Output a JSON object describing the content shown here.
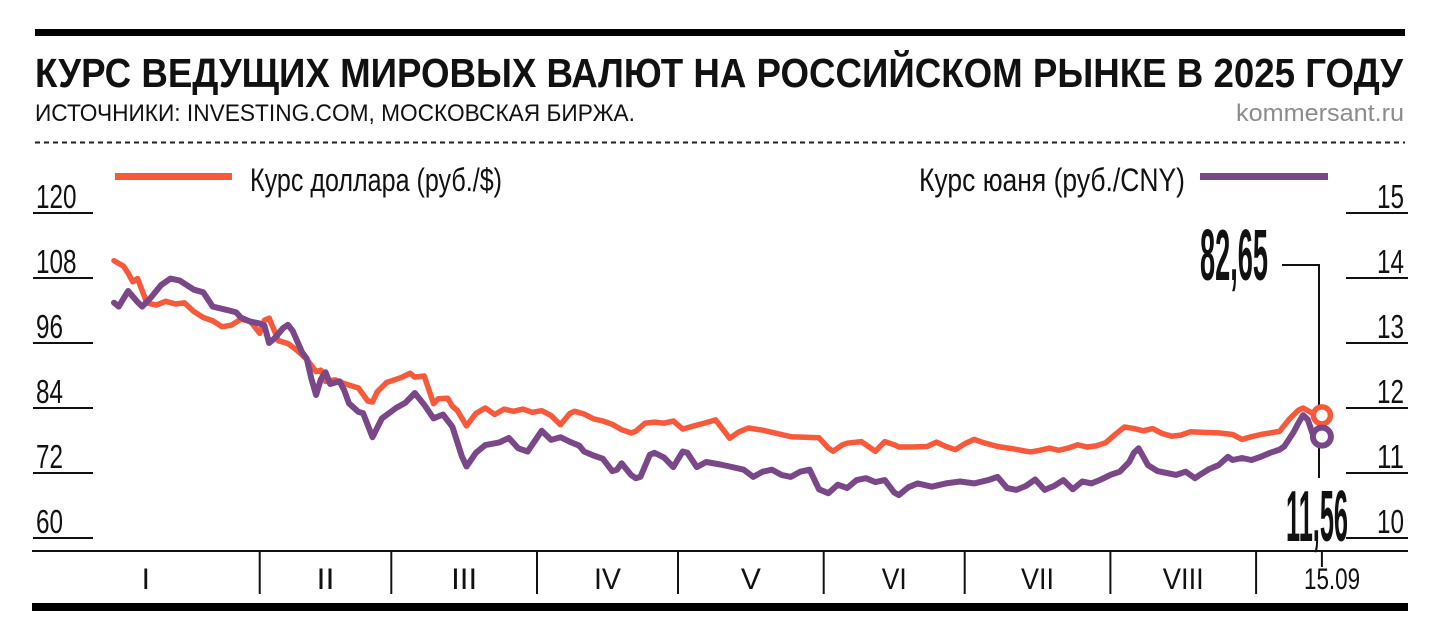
{
  "header": {
    "sources": "ИСТОЧНИКИ: INVESTING.COM, МОСКОВСКАЯ БИРЖА.",
    "site": "kommersant.ru"
  },
  "chart_data": {
    "type": "line",
    "title": "КУРС ВЕДУЩИХ МИРОВЫХ ВАЛЮТ НА РОССИЙСКОМ РЫНКЕ В 2025 ГОДУ",
    "x_axis": {
      "labels": [
        "I",
        "II",
        "III",
        "IV",
        "V",
        "VI",
        "VII",
        "VIII",
        "15.09"
      ],
      "month_boundary_days": [
        31,
        59,
        90,
        120,
        151,
        181,
        212,
        243
      ],
      "end_day": 257,
      "end_date_label": "15.09"
    },
    "left_axis": {
      "ticks": [
        120,
        108,
        96,
        84,
        72,
        60
      ],
      "range": [
        60,
        120
      ],
      "label": "руб./$"
    },
    "right_axis": {
      "ticks": [
        15,
        14,
        13,
        12,
        11,
        10
      ],
      "range": [
        10,
        15
      ],
      "label": "руб./CNY"
    },
    "grid": false,
    "legend_position": "top",
    "series": [
      {
        "name": "Курс доллара (руб./$)",
        "axis": "left",
        "color": "#F7593B",
        "end_value": 82.65,
        "end_label": "82,65",
        "points": [
          [
            0,
            111.2
          ],
          [
            2,
            110.2
          ],
          [
            3,
            108.9
          ],
          [
            4,
            107.3
          ],
          [
            5,
            107.9
          ],
          [
            7,
            103.4
          ],
          [
            9,
            103.0
          ],
          [
            11,
            103.7
          ],
          [
            13,
            103.2
          ],
          [
            15,
            103.4
          ],
          [
            17,
            101.8
          ],
          [
            19,
            100.7
          ],
          [
            21,
            100.1
          ],
          [
            23,
            99.0
          ],
          [
            25,
            99.3
          ],
          [
            27,
            100.4
          ],
          [
            29,
            100.0
          ],
          [
            31,
            97.8
          ],
          [
            32,
            100.2
          ],
          [
            33,
            100.6
          ],
          [
            35,
            96.4
          ],
          [
            37,
            95.9
          ],
          [
            39,
            94.6
          ],
          [
            41,
            93.0
          ],
          [
            43,
            90.7
          ],
          [
            44,
            91.0
          ],
          [
            45,
            88.9
          ],
          [
            47,
            89.2
          ],
          [
            49,
            88.5
          ],
          [
            52,
            87.7
          ],
          [
            54,
            85.3
          ],
          [
            55,
            85.1
          ],
          [
            56,
            87.0
          ],
          [
            58,
            88.7
          ],
          [
            61,
            89.6
          ],
          [
            63,
            90.4
          ],
          [
            64,
            89.7
          ],
          [
            66,
            89.9
          ],
          [
            68,
            84.8
          ],
          [
            69,
            85.7
          ],
          [
            71,
            85.8
          ],
          [
            72,
            84.3
          ],
          [
            73,
            83.6
          ],
          [
            75,
            80.7
          ],
          [
            77,
            83.0
          ],
          [
            79,
            84.0
          ],
          [
            81,
            82.8
          ],
          [
            83,
            83.8
          ],
          [
            85,
            83.4
          ],
          [
            87,
            83.8
          ],
          [
            89,
            83.2
          ],
          [
            91,
            83.5
          ],
          [
            93,
            82.6
          ],
          [
            95,
            80.9
          ],
          [
            97,
            83.0
          ],
          [
            98,
            83.4
          ],
          [
            100,
            82.9
          ],
          [
            102,
            82.0
          ],
          [
            104,
            81.6
          ],
          [
            106,
            81.0
          ],
          [
            108,
            80.0
          ],
          [
            110,
            79.4
          ],
          [
            111,
            79.7
          ],
          [
            113,
            81.2
          ],
          [
            115,
            81.4
          ],
          [
            117,
            81.2
          ],
          [
            119,
            81.6
          ],
          [
            121,
            80.1
          ],
          [
            123,
            80.6
          ],
          [
            126,
            81.3
          ],
          [
            128,
            81.8
          ],
          [
            131,
            78.4
          ],
          [
            133,
            79.6
          ],
          [
            135,
            80.3
          ],
          [
            138,
            79.9
          ],
          [
            142,
            79.1
          ],
          [
            144,
            78.7
          ],
          [
            147,
            78.6
          ],
          [
            150,
            78.5
          ],
          [
            152,
            76.6
          ],
          [
            153,
            76.0
          ],
          [
            155,
            77.2
          ],
          [
            156,
            77.5
          ],
          [
            159,
            77.8
          ],
          [
            162,
            76.0
          ],
          [
            164,
            77.8
          ],
          [
            166,
            77.2
          ],
          [
            167,
            76.8
          ],
          [
            170,
            76.8
          ],
          [
            173,
            76.9
          ],
          [
            175,
            77.7
          ],
          [
            177,
            76.9
          ],
          [
            179,
            76.3
          ],
          [
            181,
            77.4
          ],
          [
            183,
            78.2
          ],
          [
            185,
            77.6
          ],
          [
            188,
            76.9
          ],
          [
            191,
            76.5
          ],
          [
            193,
            76.2
          ],
          [
            195,
            75.9
          ],
          [
            197,
            76.2
          ],
          [
            199,
            76.6
          ],
          [
            201,
            76.2
          ],
          [
            203,
            76.6
          ],
          [
            205,
            77.2
          ],
          [
            207,
            76.8
          ],
          [
            209,
            77.0
          ],
          [
            211,
            77.6
          ],
          [
            213,
            79.1
          ],
          [
            215,
            80.5
          ],
          [
            217,
            80.2
          ],
          [
            219,
            79.8
          ],
          [
            221,
            80.2
          ],
          [
            223,
            79.3
          ],
          [
            225,
            78.8
          ],
          [
            227,
            79.0
          ],
          [
            229,
            79.6
          ],
          [
            232,
            79.5
          ],
          [
            235,
            79.4
          ],
          [
            238,
            79.1
          ],
          [
            240,
            78.2
          ],
          [
            242,
            78.7
          ],
          [
            244,
            79.1
          ],
          [
            246,
            79.4
          ],
          [
            248,
            79.7
          ],
          [
            250,
            81.9
          ],
          [
            252,
            83.6
          ],
          [
            253,
            84.0
          ],
          [
            255,
            83.0
          ],
          [
            257,
            82.65
          ]
        ]
      },
      {
        "name": "Курс юаня (руб./CNY)",
        "axis": "right",
        "color": "#7A4788",
        "end_value": 11.56,
        "end_label": "11,56",
        "points": [
          [
            0,
            13.62
          ],
          [
            1,
            13.56
          ],
          [
            3,
            13.8
          ],
          [
            5,
            13.63
          ],
          [
            6,
            13.56
          ],
          [
            8,
            13.71
          ],
          [
            10,
            13.89
          ],
          [
            12,
            13.99
          ],
          [
            14,
            13.96
          ],
          [
            17,
            13.82
          ],
          [
            19,
            13.78
          ],
          [
            21,
            13.56
          ],
          [
            24,
            13.51
          ],
          [
            26,
            13.47
          ],
          [
            27,
            13.39
          ],
          [
            29,
            13.33
          ],
          [
            31,
            13.3
          ],
          [
            32,
            13.27
          ],
          [
            33,
            13.0
          ],
          [
            34,
            13.06
          ],
          [
            36,
            13.23
          ],
          [
            37,
            13.28
          ],
          [
            38,
            13.19
          ],
          [
            40,
            12.86
          ],
          [
            41,
            12.76
          ],
          [
            42,
            12.45
          ],
          [
            43,
            12.2
          ],
          [
            44,
            12.44
          ],
          [
            45,
            12.55
          ],
          [
            46,
            12.37
          ],
          [
            48,
            12.41
          ],
          [
            49,
            12.27
          ],
          [
            50,
            12.07
          ],
          [
            52,
            11.94
          ],
          [
            53,
            11.92
          ],
          [
            55,
            11.55
          ],
          [
            57,
            11.84
          ],
          [
            60,
            12.0
          ],
          [
            62,
            12.08
          ],
          [
            64,
            12.23
          ],
          [
            66,
            12.05
          ],
          [
            68,
            11.84
          ],
          [
            70,
            11.9
          ],
          [
            72,
            11.71
          ],
          [
            74,
            11.26
          ],
          [
            75,
            11.1
          ],
          [
            77,
            11.31
          ],
          [
            79,
            11.43
          ],
          [
            82,
            11.47
          ],
          [
            84,
            11.54
          ],
          [
            86,
            11.38
          ],
          [
            88,
            11.33
          ],
          [
            91,
            11.65
          ],
          [
            93,
            11.51
          ],
          [
            95,
            11.55
          ],
          [
            97,
            11.48
          ],
          [
            99,
            11.42
          ],
          [
            100,
            11.33
          ],
          [
            102,
            11.27
          ],
          [
            104,
            11.22
          ],
          [
            106,
            11.03
          ],
          [
            107,
            11.05
          ],
          [
            108,
            11.15
          ],
          [
            110,
            10.97
          ],
          [
            111,
            10.92
          ],
          [
            112,
            10.94
          ],
          [
            114,
            11.28
          ],
          [
            115,
            11.31
          ],
          [
            117,
            11.24
          ],
          [
            119,
            11.09
          ],
          [
            121,
            11.33
          ],
          [
            122,
            11.31
          ],
          [
            124,
            11.09
          ],
          [
            126,
            11.17
          ],
          [
            129,
            11.13
          ],
          [
            131,
            11.1
          ],
          [
            134,
            11.05
          ],
          [
            136,
            10.94
          ],
          [
            138,
            11.02
          ],
          [
            140,
            11.05
          ],
          [
            142,
            10.97
          ],
          [
            144,
            10.94
          ],
          [
            146,
            11.02
          ],
          [
            148,
            11.05
          ],
          [
            150,
            10.75
          ],
          [
            152,
            10.69
          ],
          [
            154,
            10.82
          ],
          [
            156,
            10.77
          ],
          [
            158,
            10.89
          ],
          [
            160,
            10.92
          ],
          [
            162,
            10.86
          ],
          [
            164,
            10.89
          ],
          [
            166,
            10.7
          ],
          [
            167,
            10.66
          ],
          [
            169,
            10.78
          ],
          [
            171,
            10.84
          ],
          [
            174,
            10.79
          ],
          [
            177,
            10.84
          ],
          [
            180,
            10.87
          ],
          [
            183,
            10.84
          ],
          [
            186,
            10.89
          ],
          [
            188,
            10.94
          ],
          [
            190,
            10.77
          ],
          [
            192,
            10.74
          ],
          [
            194,
            10.8
          ],
          [
            196,
            10.9
          ],
          [
            198,
            10.74
          ],
          [
            200,
            10.8
          ],
          [
            202,
            10.89
          ],
          [
            204,
            10.75
          ],
          [
            206,
            10.87
          ],
          [
            208,
            10.84
          ],
          [
            210,
            10.9
          ],
          [
            212,
            10.97
          ],
          [
            214,
            11.02
          ],
          [
            216,
            11.17
          ],
          [
            217,
            11.31
          ],
          [
            218,
            11.38
          ],
          [
            220,
            11.12
          ],
          [
            222,
            11.03
          ],
          [
            224,
            11.0
          ],
          [
            226,
            10.97
          ],
          [
            228,
            11.02
          ],
          [
            230,
            10.92
          ],
          [
            231,
            10.97
          ],
          [
            233,
            11.06
          ],
          [
            235,
            11.12
          ],
          [
            237,
            11.25
          ],
          [
            238,
            11.2
          ],
          [
            240,
            11.23
          ],
          [
            242,
            11.2
          ],
          [
            244,
            11.25
          ],
          [
            246,
            11.31
          ],
          [
            248,
            11.36
          ],
          [
            249,
            11.41
          ],
          [
            251,
            11.63
          ],
          [
            252,
            11.77
          ],
          [
            253,
            11.89
          ],
          [
            254,
            11.82
          ],
          [
            255,
            11.61
          ],
          [
            257,
            11.56
          ]
        ]
      }
    ]
  },
  "colors": {
    "dollar": "#F7593B",
    "yuan": "#7A4788",
    "ink": "#111111",
    "site_gray": "#8c8c8c"
  }
}
